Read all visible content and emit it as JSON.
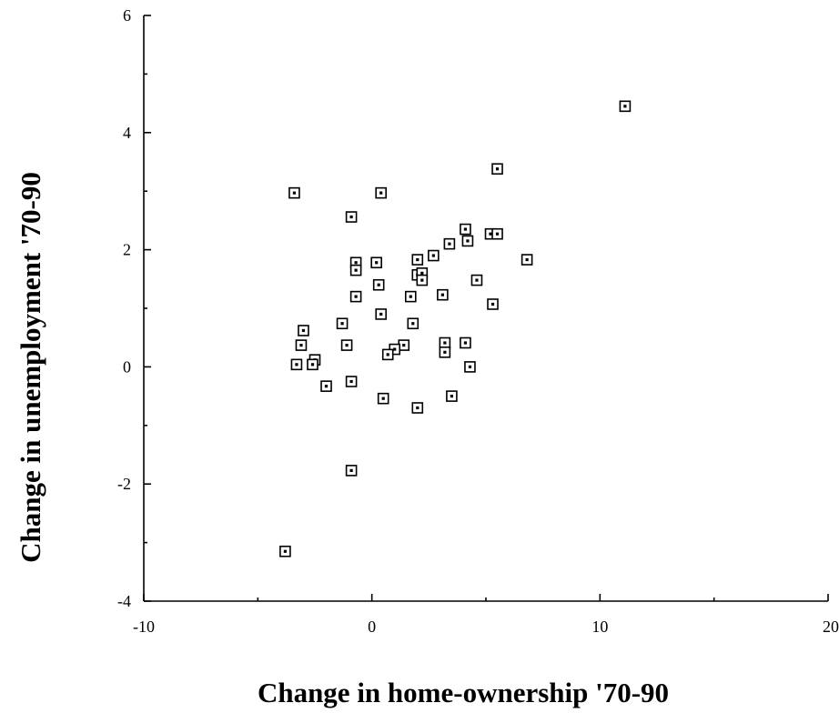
{
  "chart_data": {
    "type": "scatter",
    "title": "",
    "xlabel": "Change in home-ownership '70-90",
    "ylabel": "Change in unemployment '70-90",
    "xlim": [
      -10,
      20
    ],
    "ylim": [
      -4,
      6
    ],
    "xticks": [
      -10,
      0,
      10,
      20
    ],
    "xtick_labels": [
      "-10",
      "0",
      "10",
      "20"
    ],
    "yticks": [
      -4,
      -2,
      0,
      2,
      4,
      6
    ],
    "ytick_labels": [
      "-4",
      "-2",
      "0",
      "2",
      "4",
      "6"
    ],
    "grid": false,
    "legend": "none",
    "marker": "hollow-square-with-dot",
    "points": [
      {
        "x": 11.1,
        "y": 4.45
      },
      {
        "x": 5.5,
        "y": 3.38
      },
      {
        "x": -3.4,
        "y": 2.97
      },
      {
        "x": 0.4,
        "y": 2.97
      },
      {
        "x": -0.9,
        "y": 2.56
      },
      {
        "x": 4.1,
        "y": 2.35
      },
      {
        "x": 5.2,
        "y": 2.27
      },
      {
        "x": 5.5,
        "y": 2.27
      },
      {
        "x": 3.4,
        "y": 2.1
      },
      {
        "x": 4.2,
        "y": 2.15
      },
      {
        "x": 2.7,
        "y": 1.9
      },
      {
        "x": 6.8,
        "y": 1.83
      },
      {
        "x": 2.0,
        "y": 1.83
      },
      {
        "x": 0.2,
        "y": 1.78
      },
      {
        "x": -0.7,
        "y": 1.78
      },
      {
        "x": -0.7,
        "y": 1.65
      },
      {
        "x": 2.0,
        "y": 1.57
      },
      {
        "x": 2.2,
        "y": 1.6
      },
      {
        "x": 2.2,
        "y": 1.48
      },
      {
        "x": 4.6,
        "y": 1.48
      },
      {
        "x": 0.3,
        "y": 1.4
      },
      {
        "x": 3.1,
        "y": 1.23
      },
      {
        "x": 1.7,
        "y": 1.2
      },
      {
        "x": -0.7,
        "y": 1.2
      },
      {
        "x": 5.3,
        "y": 1.07
      },
      {
        "x": 0.4,
        "y": 0.9
      },
      {
        "x": -1.3,
        "y": 0.74
      },
      {
        "x": 1.8,
        "y": 0.74
      },
      {
        "x": -3.0,
        "y": 0.62
      },
      {
        "x": -3.1,
        "y": 0.37
      },
      {
        "x": -1.1,
        "y": 0.37
      },
      {
        "x": 1.4,
        "y": 0.37
      },
      {
        "x": 3.2,
        "y": 0.41
      },
      {
        "x": 4.1,
        "y": 0.41
      },
      {
        "x": 1.0,
        "y": 0.3
      },
      {
        "x": 0.7,
        "y": 0.21
      },
      {
        "x": 3.2,
        "y": 0.25
      },
      {
        "x": -2.5,
        "y": 0.12
      },
      {
        "x": -3.3,
        "y": 0.04
      },
      {
        "x": -2.6,
        "y": 0.04
      },
      {
        "x": 4.3,
        "y": 0.0
      },
      {
        "x": -0.9,
        "y": -0.25
      },
      {
        "x": -2.0,
        "y": -0.33
      },
      {
        "x": 0.5,
        "y": -0.54
      },
      {
        "x": 3.5,
        "y": -0.5
      },
      {
        "x": 2.0,
        "y": -0.7
      },
      {
        "x": -0.9,
        "y": -1.77
      },
      {
        "x": -3.8,
        "y": -3.15
      }
    ]
  }
}
